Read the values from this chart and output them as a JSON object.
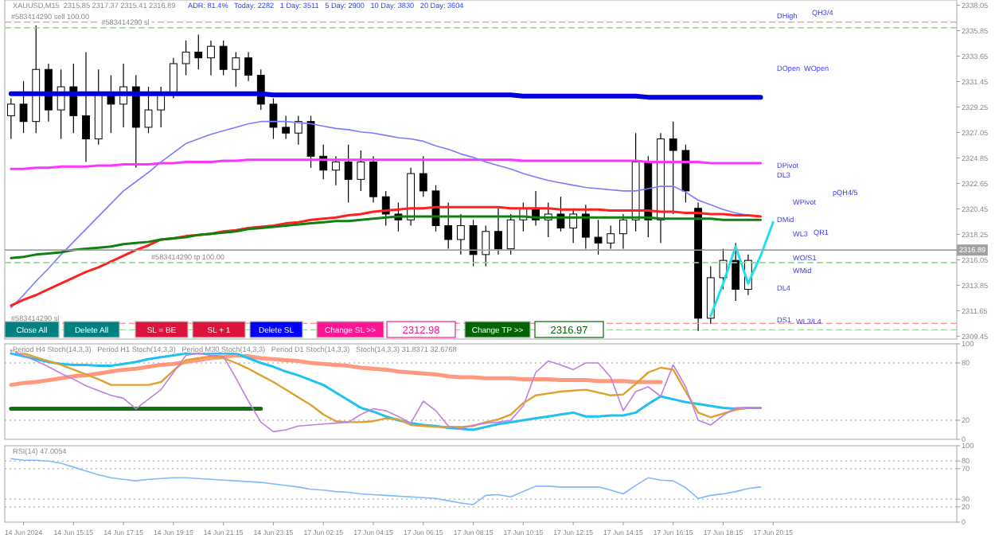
{
  "chart_data": [
    {
      "type": "candlestick",
      "title": "XAUUSD,M15  2315.85 2317.37 2315.41 2316.89",
      "subtitle": "ADR: 81.4%   Today: 2282   1 Day: 3511   5 Day: 2900   10 Day: 3830   20 Day: 3604",
      "tick_labels": "y",
      "categories": [
        null,
        null,
        null,
        null,
        null,
        null,
        null,
        null,
        null,
        null,
        null,
        null,
        null,
        null,
        null,
        null,
        null,
        null,
        null,
        null,
        null,
        null,
        null,
        null,
        null,
        null,
        null,
        null,
        null,
        null,
        null,
        null,
        null,
        null,
        null,
        null,
        null,
        null,
        null,
        null,
        null,
        null,
        null,
        null,
        null,
        null,
        null,
        null,
        null,
        null,
        null,
        null,
        null,
        null,
        null,
        null,
        null,
        null,
        null,
        null,
        null,
        null
      ],
      "ohlc": [
        [
          2328.5,
          2330,
          2326.5,
          2329.5
        ],
        [
          2329.5,
          2331.5,
          2327,
          2328
        ],
        [
          2328,
          2336.3,
          2327,
          2332.5
        ],
        [
          2332.5,
          2333,
          2328,
          2329
        ],
        [
          2329,
          2332.5,
          2326.5,
          2331
        ],
        [
          2331,
          2333,
          2327,
          2328.5
        ],
        [
          2328.5,
          2334,
          2324.5,
          2326.5
        ],
        [
          2326.5,
          2332.5,
          2326,
          2330.5
        ],
        [
          2330.5,
          2332,
          2327,
          2329.5
        ],
        [
          2329.5,
          2333,
          2327.5,
          2331
        ],
        [
          2331,
          2332,
          2324,
          2327.5
        ],
        [
          2327.5,
          2331,
          2327,
          2329
        ],
        [
          2329,
          2331,
          2327.5,
          2330.5
        ],
        [
          2330.5,
          2333.5,
          2330,
          2333
        ],
        [
          2333,
          2335,
          2332,
          2334
        ],
        [
          2334,
          2335.5,
          2332.5,
          2333.5
        ],
        [
          2333.5,
          2335,
          2332,
          2334.5
        ],
        [
          2334.5,
          2335,
          2332,
          2332.5
        ],
        [
          2332.5,
          2334,
          2331,
          2333.5
        ],
        [
          2333.5,
          2334,
          2331.5,
          2332
        ],
        [
          2332,
          2332.5,
          2329,
          2329.5
        ],
        [
          2329.5,
          2330,
          2326.5,
          2327.5
        ],
        [
          2327.5,
          2328.5,
          2326.5,
          2327
        ],
        [
          2327,
          2328.5,
          2326,
          2328
        ],
        [
          2328,
          2328.5,
          2324,
          2325
        ],
        [
          2325,
          2326,
          2323,
          2323.8
        ],
        [
          2323.8,
          2325,
          2322.5,
          2324.5
        ],
        [
          2324.5,
          2326,
          2321,
          2323
        ],
        [
          2323,
          2325.5,
          2322,
          2324.5
        ],
        [
          2324.5,
          2325,
          2321,
          2321.5
        ],
        [
          2321.5,
          2322,
          2319,
          2320
        ],
        [
          2320,
          2321,
          2318.5,
          2319.5
        ],
        [
          2319.5,
          2324,
          2319,
          2323.5
        ],
        [
          2323.5,
          2325,
          2321.5,
          2322
        ],
        [
          2322,
          2322.5,
          2318.5,
          2319
        ],
        [
          2319,
          2321,
          2317,
          2317.8
        ],
        [
          2317.8,
          2320,
          2316.5,
          2319
        ],
        [
          2319,
          2319.5,
          2315.5,
          2316.5
        ],
        [
          2316.5,
          2319,
          2315.5,
          2318.5
        ],
        [
          2318.5,
          2320.5,
          2316.5,
          2317
        ],
        [
          2317,
          2320,
          2316.5,
          2319.5
        ],
        [
          2319.5,
          2321,
          2318.5,
          2320.5
        ],
        [
          2320.5,
          2322,
          2319,
          2319.5
        ],
        [
          2319.5,
          2321,
          2318,
          2320
        ],
        [
          2320,
          2321.5,
          2318.5,
          2318.8
        ],
        [
          2318.8,
          2320.5,
          2317.5,
          2320
        ],
        [
          2320,
          2320.8,
          2317,
          2318
        ],
        [
          2318,
          2319.5,
          2316.5,
          2317.5
        ],
        [
          2317.5,
          2319,
          2317,
          2318.3
        ],
        [
          2318.3,
          2320,
          2317,
          2319.5
        ],
        [
          2319.5,
          2327,
          2318.5,
          2324.5
        ],
        [
          2324.5,
          2325,
          2318,
          2319.5
        ],
        [
          2319.5,
          2327,
          2317.5,
          2326.5
        ],
        [
          2326.5,
          2328,
          2320,
          2325.5
        ],
        [
          2325.5,
          2326,
          2321,
          2322
        ],
        [
          2320.5,
          2321,
          2309.9,
          2311
        ],
        [
          2311,
          2315.5,
          2310.5,
          2314.5
        ],
        [
          2314.5,
          2317,
          2313.5,
          2316
        ],
        [
          2316,
          2317.5,
          2312.5,
          2313.5
        ],
        [
          2313.5,
          2316.5,
          2313,
          2316
        ],
        null,
        null
      ],
      "series": [
        {
          "type": "line",
          "color": "#0000e0",
          "values": [
            2330.4,
            2330.4,
            2330.4,
            2330.4,
            2330.4,
            2330.4,
            2330.4,
            2330.4,
            2330.4,
            2330.4,
            2330.4,
            2330.4,
            2330.4,
            2330.4,
            2330.4,
            2330.4,
            2330.4,
            2330.4,
            2330.4,
            2330.4,
            2330.4,
            2330.3,
            2330.3,
            2330.3,
            2330.3,
            2330.3,
            2330.3,
            2330.3,
            2330.3,
            2330.3,
            2330.3,
            2330.3,
            2330.3,
            2330.3,
            2330.3,
            2330.3,
            2330.3,
            2330.3,
            2330.3,
            2330.3,
            2330.3,
            2330.2,
            2330.2,
            2330.2,
            2330.2,
            2330.2,
            2330.2,
            2330.2,
            2330.2,
            2330.2,
            2330.2,
            2330.1,
            2330.1,
            2330.1,
            2330.1,
            2330.1,
            2330.1,
            2330.1,
            2330.1,
            2330.1,
            2330.1,
            null
          ]
        },
        {
          "type": "line",
          "color": "#ff33ff",
          "values": [
            2323.9,
            2323.9,
            2324.0,
            2324.0,
            2324.1,
            2324.1,
            2324.1,
            2324.2,
            2324.2,
            2324.3,
            2324.3,
            2324.3,
            2324.4,
            2324.4,
            2324.5,
            2324.5,
            2324.5,
            2324.6,
            2324.6,
            2324.7,
            2324.7,
            2324.7,
            2324.7,
            2324.7,
            2324.7,
            2324.7,
            2324.7,
            2324.7,
            2324.7,
            2324.7,
            2324.7,
            2324.7,
            2324.7,
            2324.7,
            2324.7,
            2324.7,
            2324.7,
            2324.7,
            2324.7,
            2324.7,
            2324.7,
            2324.6,
            2324.6,
            2324.6,
            2324.6,
            2324.6,
            2324.6,
            2324.6,
            2324.6,
            2324.6,
            2324.6,
            2324.5,
            2324.5,
            2324.5,
            2324.5,
            2324.5,
            2324.4,
            2324.4,
            2324.4,
            2324.4,
            2324.4,
            null
          ]
        },
        {
          "type": "line",
          "color": "#7b7bff",
          "values": [
            2311.9,
            2313.0,
            2314.2,
            2315.3,
            2316.5,
            2317.6,
            2318.7,
            2319.8,
            2320.9,
            2322.0,
            2322.8,
            2323.6,
            2324.5,
            2325.3,
            2326.1,
            2326.5,
            2326.9,
            2327.2,
            2327.5,
            2327.8,
            2328.0,
            2328.0,
            2328.0,
            2327.9,
            2327.8,
            2327.6,
            2327.4,
            2327.3,
            2327.1,
            2327.0,
            2326.8,
            2326.6,
            2326.5,
            2326.3,
            2325.9,
            2325.6,
            2325.2,
            2324.9,
            2324.5,
            2324.2,
            2323.9,
            2323.5,
            2323.2,
            2322.9,
            2322.7,
            2322.5,
            2322.3,
            2322.2,
            2322.1,
            2322.0,
            2322.0,
            2322.2,
            2322.4,
            2322.4,
            2321.9,
            2321.2,
            2320.8,
            2320.4,
            2320.1,
            2319.9,
            2319.8,
            null
          ]
        },
        {
          "type": "line",
          "color": "#ff2020",
          "values": [
            2312.1,
            2312.6,
            2313.0,
            2313.5,
            2314.0,
            2314.5,
            2315.0,
            2315.4,
            2315.9,
            2316.4,
            2316.9,
            2317.3,
            2317.8,
            2317.9,
            2318.1,
            2318.2,
            2318.3,
            2318.5,
            2318.6,
            2318.8,
            2318.9,
            2319.0,
            2319.2,
            2319.3,
            2319.5,
            2319.6,
            2319.7,
            2319.9,
            2320.0,
            2320.2,
            2320.3,
            2320.4,
            2320.5,
            2320.5,
            2320.6,
            2320.6,
            2320.6,
            2320.6,
            2320.6,
            2320.6,
            2320.5,
            2320.5,
            2320.5,
            2320.5,
            2320.4,
            2320.4,
            2320.4,
            2320.4,
            2320.3,
            2320.3,
            2320.3,
            2320.3,
            2320.2,
            2320.2,
            2320.1,
            2320.1,
            2320.0,
            2320.0,
            2319.9,
            2319.9,
            2319.8,
            null
          ]
        },
        {
          "type": "line",
          "color": "#108010",
          "values": [
            2316.2,
            2316.3,
            2316.5,
            2316.6,
            2316.7,
            2316.9,
            2317.0,
            2317.1,
            2317.2,
            2317.4,
            2317.5,
            2317.6,
            2317.8,
            2317.9,
            2318.0,
            2318.2,
            2318.3,
            2318.4,
            2318.5,
            2318.7,
            2318.8,
            2318.9,
            2319.0,
            2319.1,
            2319.2,
            2319.3,
            2319.4,
            2319.4,
            2319.5,
            2319.6,
            2319.7,
            2319.8,
            2319.8,
            2319.8,
            2319.8,
            2319.8,
            2319.8,
            2319.8,
            2319.8,
            2319.8,
            2319.8,
            2319.8,
            2319.7,
            2319.7,
            2319.7,
            2319.7,
            2319.7,
            2319.7,
            2319.7,
            2319.7,
            2319.7,
            2319.7,
            2319.6,
            2319.6,
            2319.6,
            2319.6,
            2319.6,
            2319.5,
            2319.5,
            2319.5,
            2319.5,
            null
          ]
        },
        {
          "type": "line",
          "color": "#20e0f0",
          "values": [
            null,
            null,
            null,
            null,
            null,
            null,
            null,
            null,
            null,
            null,
            null,
            null,
            null,
            null,
            null,
            null,
            null,
            null,
            null,
            null,
            null,
            null,
            null,
            null,
            null,
            null,
            null,
            null,
            null,
            null,
            null,
            null,
            null,
            null,
            null,
            null,
            null,
            null,
            null,
            null,
            null,
            null,
            null,
            null,
            null,
            null,
            null,
            null,
            null,
            null,
            null,
            null,
            null,
            null,
            null,
            null,
            2311.2,
            2314.0,
            2317.2,
            2314.0,
            2316.4,
            2319.3
          ]
        }
      ],
      "ylim": [
        2309.2,
        2338.5
      ],
      "yticks": [
        2309.45,
        2311.65,
        2313.85,
        2316.05,
        2318.25,
        2320.45,
        2322.65,
        2324.85,
        2327.05,
        2329.25,
        2331.45,
        2333.65,
        2335.85,
        2338.05
      ],
      "ref_lines": [
        {
          "axis": "y",
          "value": 2336.6,
          "label": "#583414290 sell 100.00",
          "color": "#ff9999",
          "line_style": "dashed"
        },
        {
          "axis": "y",
          "value": 2336.1,
          "label": "#583414290 sl",
          "color": "#99dd99",
          "line_style": "dashed"
        },
        {
          "axis": "y",
          "value": 2316.89,
          "label": "2316.89",
          "color": "#a0a0a0",
          "line_style": "solid"
        },
        {
          "axis": "y",
          "value": 2315.8,
          "label": "#583414290 tp 100.00",
          "color": "#99dd99",
          "line_style": "dashed"
        },
        {
          "axis": "y",
          "value": 2310.55,
          "label": "#583414290 sl",
          "color": "#ff9999",
          "line_style": "dashed"
        },
        {
          "axis": "y",
          "value": 2310.0,
          "color": "#99dd99",
          "line_style": "dashed"
        }
      ],
      "annotations": [
        "DHigh",
        "QH3/4",
        "DOpen",
        "WOpen",
        "DPivot",
        "DL3",
        "WPivot",
        "pQH4/5",
        "DMid",
        "WL3",
        "QR1",
        "WO/S1",
        "WMid",
        "DL4",
        "DS1",
        "WL3/L4"
      ]
    },
    {
      "type": "line",
      "title": "Period H4 Stoch(14,3,3)   Period H1 Stoch(14,3,3)   Period M30 Stoch(14,3,3)   Period D1 Stoch(14,3,3)   Stoch(14,3,3) 31.8371 32.6768",
      "tick_labels": "y",
      "categories": [
        null,
        null,
        null,
        null,
        null,
        null,
        null,
        null,
        null,
        null,
        null,
        null,
        null,
        null,
        null,
        null,
        null,
        null,
        null,
        null,
        null,
        null,
        null,
        null,
        null,
        null,
        null,
        null,
        null,
        null,
        null,
        null,
        null,
        null,
        null,
        null,
        null,
        null,
        null,
        null,
        null,
        null,
        null,
        null,
        null,
        null,
        null,
        null,
        null,
        null,
        null,
        null,
        null,
        null,
        null,
        null,
        null,
        null,
        null,
        null,
        null,
        null
      ],
      "series": [
        {
          "color": "#ff9a80",
          "values": [
            57,
            59,
            60,
            62,
            64,
            66,
            67,
            69,
            71,
            73,
            74,
            76,
            78,
            79,
            81,
            83,
            85,
            86,
            88,
            87,
            85,
            84,
            83,
            82,
            80,
            79,
            78,
            77,
            75,
            74,
            73,
            71,
            70,
            69,
            68,
            66,
            65,
            65,
            64,
            64,
            64,
            63,
            63,
            63,
            62,
            62,
            62,
            61,
            61,
            61,
            60,
            60,
            60,
            null,
            null,
            null,
            null,
            null,
            null,
            null,
            null,
            null
          ]
        },
        {
          "color": "#107010",
          "values": [
            32,
            32,
            32,
            32,
            32,
            32,
            32,
            32,
            32,
            32,
            32,
            32,
            32,
            32,
            32,
            32,
            32,
            32,
            32,
            32,
            32,
            null,
            null,
            null,
            null,
            null,
            null,
            null,
            null,
            null,
            null,
            null,
            null,
            null,
            null,
            null,
            null,
            null,
            null,
            null,
            null,
            null,
            null,
            null,
            null,
            null,
            null,
            null,
            null,
            null,
            null,
            null,
            null,
            null,
            null,
            null,
            null,
            null,
            null,
            null,
            null,
            null
          ]
        },
        {
          "color": "#20c0f0",
          "values": [
            90,
            87,
            84,
            81,
            79,
            78,
            78,
            77,
            77,
            79,
            81,
            84,
            86,
            88,
            90,
            90,
            90,
            90,
            90,
            85,
            80,
            76,
            71,
            67,
            62,
            57,
            49,
            41,
            33,
            29,
            24,
            20,
            17,
            15,
            14,
            12,
            11,
            10,
            13,
            16,
            18,
            20,
            22,
            24,
            26,
            28,
            24,
            24,
            25,
            25,
            28,
            37,
            45,
            42,
            39,
            37,
            35,
            33,
            32,
            33,
            33,
            null
          ]
        },
        {
          "color": "#e0a030",
          "values": [
            93,
            90,
            86,
            82,
            78,
            73,
            68,
            63,
            57,
            57,
            57,
            57,
            60,
            72,
            83,
            85,
            87,
            85,
            80,
            74,
            67,
            60,
            52,
            44,
            36,
            26,
            19,
            18,
            18,
            19,
            22,
            21,
            15,
            14,
            13,
            13,
            13,
            14,
            18,
            21,
            26,
            38,
            46,
            48,
            50,
            51,
            52,
            49,
            46,
            47,
            58,
            70,
            75,
            73,
            50,
            28,
            23,
            27,
            31,
            33,
            33,
            null
          ]
        },
        {
          "color": "#c080e0",
          "values": [
            93,
            88,
            82,
            76,
            69,
            63,
            56,
            51,
            46,
            43,
            32,
            42,
            52,
            70,
            88,
            90,
            88,
            87,
            64,
            40,
            18,
            8,
            10,
            14,
            15,
            16,
            17,
            18,
            26,
            32,
            30,
            24,
            17,
            40,
            30,
            14,
            11,
            15,
            17,
            18,
            20,
            35,
            70,
            82,
            78,
            73,
            80,
            80,
            65,
            30,
            50,
            55,
            45,
            78,
            55,
            20,
            15,
            25,
            33,
            33,
            33,
            null
          ]
        }
      ],
      "ylim": [
        0,
        100
      ],
      "yticks": [
        0,
        20,
        80,
        100
      ],
      "ref_lines": [
        {
          "axis": "y",
          "value": 80,
          "color": "#c0c0c0",
          "line_style": "dotted"
        },
        {
          "axis": "y",
          "value": 20,
          "color": "#c0c0c0",
          "line_style": "dotted"
        }
      ]
    },
    {
      "type": "line",
      "title": "RSI(14) 47.0054",
      "categories": [
        null,
        "14 Jun 2024",
        null,
        null,
        null,
        "14 Jun 15:15",
        null,
        null,
        null,
        "14 Jun 17:15",
        null,
        null,
        null,
        "14 Jun 19:15",
        null,
        null,
        null,
        "14 Jun 21:15",
        null,
        null,
        null,
        "14 Jun 23:15",
        null,
        null,
        null,
        "17 Jun 02:15",
        null,
        null,
        null,
        "17 Jun 04:15",
        null,
        null,
        null,
        "17 Jun 06:15",
        null,
        null,
        null,
        "17 Jun 08:15",
        null,
        null,
        null,
        "17 Jun 10:15",
        null,
        null,
        null,
        "17 Jun 12:15",
        null,
        null,
        null,
        "17 Jun 14:15",
        null,
        null,
        null,
        "17 Jun 16:15",
        null,
        null,
        null,
        "17 Jun 18:15",
        null,
        null,
        null,
        "17 Jun 20:15"
      ],
      "series": [
        {
          "color": "#80b8ff",
          "values": [
            83,
            81,
            81,
            80,
            77,
            72,
            67,
            62,
            58,
            56,
            54,
            56,
            57,
            58,
            58,
            57,
            56,
            55,
            54,
            53,
            52,
            50,
            48,
            46,
            43,
            42,
            40,
            39,
            37,
            36,
            35,
            34,
            33,
            32,
            31,
            28,
            25,
            23,
            35,
            36,
            33,
            40,
            47,
            47,
            46,
            46,
            46,
            46,
            42,
            37,
            48,
            58,
            55,
            54,
            45,
            31,
            35,
            37,
            40,
            44,
            46,
            null
          ]
        }
      ],
      "ylim": [
        0,
        100
      ],
      "yticks": [
        0,
        20,
        30,
        70,
        80,
        100
      ],
      "ref_lines": [
        {
          "axis": "y",
          "value": 80,
          "color": "#c0c0c0",
          "line_style": "dotted"
        },
        {
          "axis": "y",
          "value": 70,
          "color": "#c0c0c0",
          "line_style": "dotted"
        },
        {
          "axis": "y",
          "value": 30,
          "color": "#c0c0c0",
          "line_style": "dotted"
        },
        {
          "axis": "y",
          "value": 20,
          "color": "#c0c0c0",
          "line_style": "dotted"
        }
      ]
    },
    {
      "type": "other",
      "annotations": [
        "Close All",
        "Delete All",
        "SL = BE",
        "SL + 1",
        "Delete SL",
        "Change SL >>",
        "2312.98",
        "Change TP >>",
        "2316.97"
      ],
      "colors": [
        "#008080",
        "#008080",
        "#dc143c",
        "#dc143c",
        "#0000ff",
        "#ff1493",
        "#ffffff",
        "#006400",
        "#ffffff"
      ]
    }
  ]
}
